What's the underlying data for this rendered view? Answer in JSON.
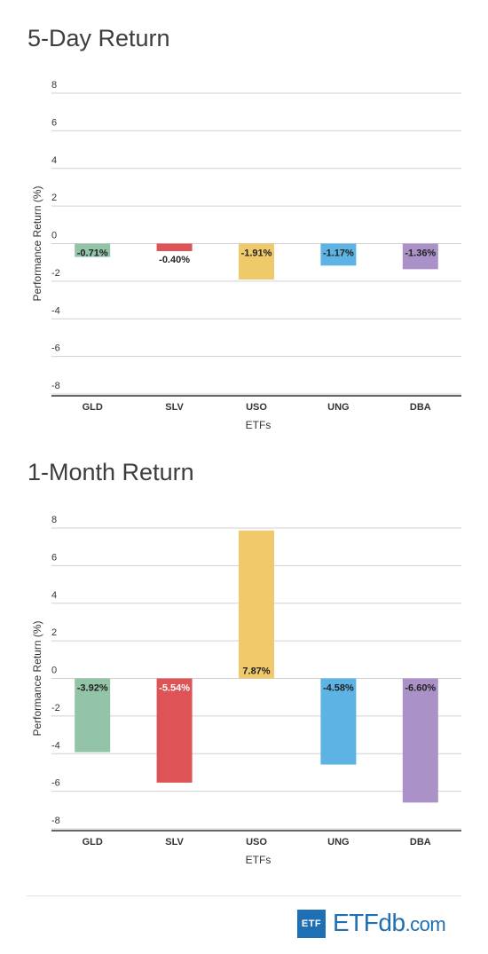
{
  "charts": [
    {
      "title": "5-Day Return",
      "ylabel": "Performance Return (%)",
      "xlabel": "ETFs",
      "yticks": [
        "8",
        "6",
        "4",
        "2",
        "0",
        "-2",
        "-4",
        "-6",
        "-8"
      ]
    },
    {
      "title": "1-Month Return",
      "ylabel": "Performance Return (%)",
      "xlabel": "ETFs",
      "yticks": [
        "8",
        "6",
        "4",
        "2",
        "0",
        "-2",
        "-4",
        "-6",
        "-8"
      ]
    }
  ],
  "chart_data": [
    {
      "type": "bar",
      "title": "5-Day Return",
      "xlabel": "ETFs",
      "ylabel": "Performance Return (%)",
      "categories": [
        "GLD",
        "SLV",
        "USO",
        "UNG",
        "DBA"
      ],
      "values": [
        -0.71,
        -0.4,
        -1.91,
        -1.17,
        -1.36
      ],
      "labels": [
        "-0.71%",
        "-0.40%",
        "-1.91%",
        "-1.17%",
        "-1.36%"
      ],
      "colors": [
        "#93c4a8",
        "#de5456",
        "#efc96a",
        "#5db3e4",
        "#aa92c8"
      ],
      "ylim": [
        -8,
        8
      ],
      "grid": true
    },
    {
      "type": "bar",
      "title": "1-Month Return",
      "xlabel": "ETFs",
      "ylabel": "Performance Return (%)",
      "categories": [
        "GLD",
        "SLV",
        "USO",
        "UNG",
        "DBA"
      ],
      "values": [
        -3.92,
        -5.54,
        7.87,
        -4.58,
        -6.6
      ],
      "labels": [
        "-3.92%",
        "-5.54%",
        "7.87%",
        "-4.58%",
        "-6.60%"
      ],
      "colors": [
        "#93c4a8",
        "#de5456",
        "#efc96a",
        "#5db3e4",
        "#aa92c8"
      ],
      "ylim": [
        -8,
        8
      ],
      "grid": true
    }
  ],
  "footer": {
    "logo_box": "ETF",
    "logo_etf": "ETF",
    "logo_db": "db",
    "logo_com": ".com"
  }
}
